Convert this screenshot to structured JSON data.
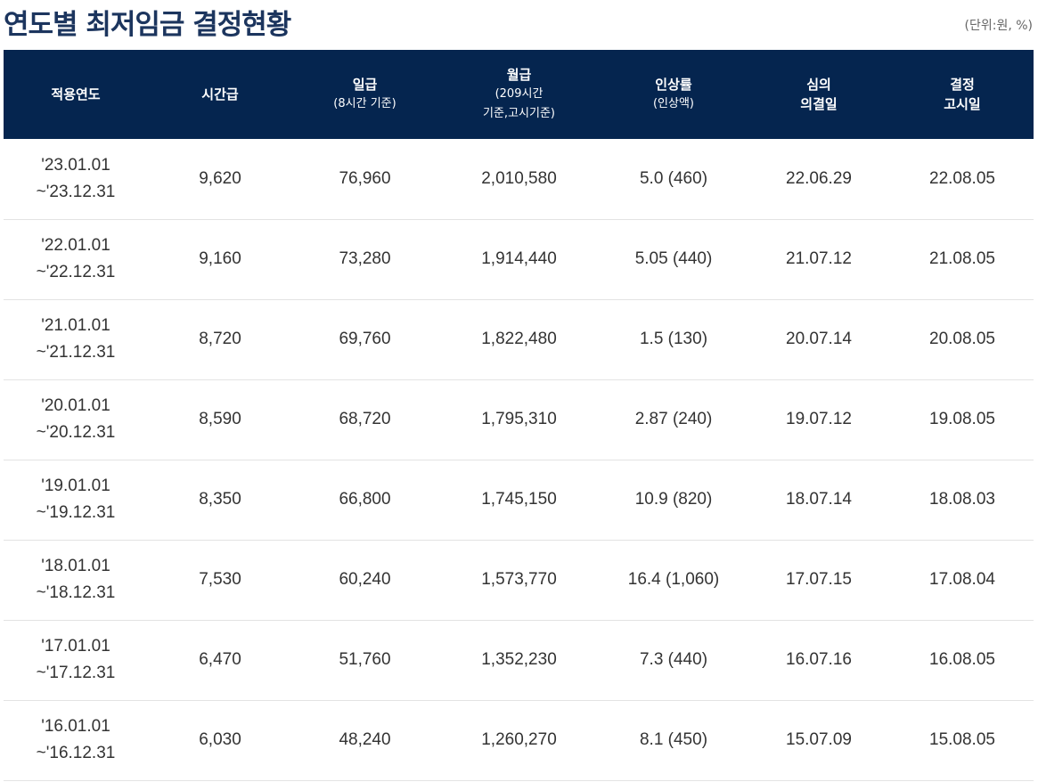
{
  "header": {
    "title": "연도별 최저임금 결정현황",
    "unit_note": "(단위:원, %)"
  },
  "table": {
    "columns": {
      "year": {
        "label": "적용연도"
      },
      "hourly": {
        "label": "시간급"
      },
      "daily": {
        "label": "일급",
        "sub": "(8시간 기준)"
      },
      "monthly": {
        "label": "월급",
        "sub_line1": "(209시간",
        "sub_line2": "기준,고시기준)"
      },
      "rate": {
        "label": "인상률",
        "sub": "(인상액)"
      },
      "decision": {
        "line1": "심의",
        "line2": "의결일"
      },
      "notice": {
        "line1": "결정",
        "line2": "고시일"
      }
    },
    "rows": [
      {
        "start": "'23.01.01",
        "end": "~'23.12.31",
        "hourly": "9,620",
        "daily": "76,960",
        "monthly": "2,010,580",
        "rate": "5.0 (460)",
        "decision": "22.06.29",
        "notice": "22.08.05"
      },
      {
        "start": "'22.01.01",
        "end": "~'22.12.31",
        "hourly": "9,160",
        "daily": "73,280",
        "monthly": "1,914,440",
        "rate": "5.05 (440)",
        "decision": "21.07.12",
        "notice": "21.08.05"
      },
      {
        "start": "'21.01.01",
        "end": "~'21.12.31",
        "hourly": "8,720",
        "daily": "69,760",
        "monthly": "1,822,480",
        "rate": "1.5 (130)",
        "decision": "20.07.14",
        "notice": "20.08.05"
      },
      {
        "start": "'20.01.01",
        "end": "~'20.12.31",
        "hourly": "8,590",
        "daily": "68,720",
        "monthly": "1,795,310",
        "rate": "2.87 (240)",
        "decision": "19.07.12",
        "notice": "19.08.05"
      },
      {
        "start": "'19.01.01",
        "end": "~'19.12.31",
        "hourly": "8,350",
        "daily": "66,800",
        "monthly": "1,745,150",
        "rate": "10.9 (820)",
        "decision": "18.07.14",
        "notice": "18.08.03"
      },
      {
        "start": "'18.01.01",
        "end": "~'18.12.31",
        "hourly": "7,530",
        "daily": "60,240",
        "monthly": "1,573,770",
        "rate": "16.4 (1,060)",
        "decision": "17.07.15",
        "notice": "17.08.04"
      },
      {
        "start": "'17.01.01",
        "end": "~'17.12.31",
        "hourly": "6,470",
        "daily": "51,760",
        "monthly": "1,352,230",
        "rate": "7.3 (440)",
        "decision": "16.07.16",
        "notice": "16.08.05"
      },
      {
        "start": "'16.01.01",
        "end": "~'16.12.31",
        "hourly": "6,030",
        "daily": "48,240",
        "monthly": "1,260,270",
        "rate": "8.1 (450)",
        "decision": "15.07.09",
        "notice": "15.08.05"
      }
    ]
  },
  "colors": {
    "title": "#1c355e",
    "header_bg": "#05254f",
    "header_text": "#ffffff",
    "row_divider": "#e3e3e3"
  }
}
